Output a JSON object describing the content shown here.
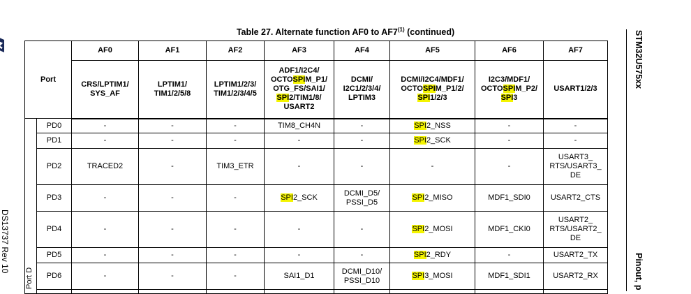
{
  "title": {
    "text": "Table 27. Alternate function AF0 to AF7",
    "sup": "(1)",
    "suffix": " (continued)"
  },
  "side": {
    "left": "DS13737 Rev 10",
    "right_top": "STM32U575xx",
    "right_bottom": "Pinout, p"
  },
  "header": {
    "port": "Port",
    "af": [
      "AF0",
      "AF1",
      "AF2",
      "AF3",
      "AF4",
      "AF5",
      "AF6",
      "AF7"
    ],
    "groups": [
      "CRS/LPTIM1/\nSYS_AF",
      "LPTIM1/\nTIM1/2/5/8",
      "LPTIM1/2/3/\nTIM1/2/3/4/5",
      "ADF1/I2C4/\nOCTOSPIM_P1/\nOTG_FS/SAI1/\nSPI2/TIM1/8/\nUSART2",
      "DCMI/\nI2C1/2/3/4/\nLPTIM3",
      "DCMI/I2C4/MDF1/\nOCTOSPIM_P1/2/\nSPI1/2/3",
      "I2C3/MDF1/\nOCTOSPIM_P2/\nSPI3",
      "USART1/2/3"
    ]
  },
  "port_group": "Port D",
  "rows": [
    {
      "pin": "PD0",
      "cells": [
        "-",
        "-",
        "-",
        "TIM8_CH4N",
        "-",
        "SPI2_NSS",
        "-",
        "-"
      ]
    },
    {
      "pin": "PD1",
      "cells": [
        "-",
        "-",
        "-",
        "-",
        "-",
        "SPI2_SCK",
        "-",
        "-"
      ]
    },
    {
      "pin": "PD2",
      "cells": [
        "TRACED2",
        "-",
        "TIM3_ETR",
        "-",
        "-",
        "-",
        "-",
        "USART3_\nRTS/USART3_\nDE"
      ]
    },
    {
      "pin": "PD3",
      "cells": [
        "-",
        "-",
        "-",
        "SPI2_SCK",
        "DCMI_D5/\nPSSI_D5",
        "SPI2_MISO",
        "MDF1_SDI0",
        "USART2_CTS"
      ]
    },
    {
      "pin": "PD4",
      "cells": [
        "-",
        "-",
        "-",
        "-",
        "-",
        "SPI2_MOSI",
        "MDF1_CKI0",
        "USART2_\nRTS/USART2_\nDE"
      ]
    },
    {
      "pin": "PD5",
      "cells": [
        "-",
        "-",
        "-",
        "-",
        "-",
        "SPI2_RDY",
        "-",
        "USART2_TX"
      ]
    },
    {
      "pin": "PD6",
      "cells": [
        "-",
        "-",
        "-",
        "SAI1_D1",
        "DCMI_D10/\nPSSI_D10",
        "SPI3_MOSI",
        "MDF1_SDI1",
        "USART2_RX"
      ]
    }
  ],
  "colors": {
    "highlight": "#f4f400"
  }
}
